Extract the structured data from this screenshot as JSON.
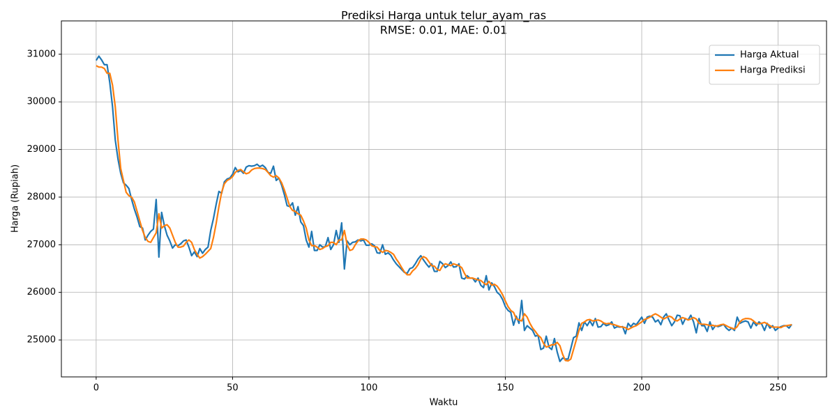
{
  "chart_data": {
    "type": "line",
    "title": "Prediksi Harga untuk telur_ayam_ras",
    "subtitle": "RMSE: 0.01, MAE: 0.01",
    "x_label": "Waktu",
    "y_label": "Harga (Rupiah)",
    "xlim": [
      -12.75,
      267.75
    ],
    "ylim": [
      24225,
      31700
    ],
    "xticks": [
      0,
      50,
      100,
      150,
      200,
      250
    ],
    "yticks": [
      25000,
      26000,
      27000,
      28000,
      29000,
      30000,
      31000
    ],
    "grid": true,
    "legend": "upper right",
    "x": [
      0,
      1,
      2,
      3,
      4,
      5,
      6,
      7,
      8,
      9,
      10,
      11,
      12,
      13,
      14,
      15,
      16,
      17,
      18,
      19,
      20,
      21,
      22,
      23,
      24,
      25,
      26,
      27,
      28,
      29,
      30,
      31,
      32,
      33,
      34,
      35,
      36,
      37,
      38,
      39,
      40,
      41,
      42,
      43,
      44,
      45,
      46,
      47,
      48,
      49,
      50,
      51,
      52,
      53,
      54,
      55,
      56,
      57,
      58,
      59,
      60,
      61,
      62,
      63,
      64,
      65,
      66,
      67,
      68,
      69,
      70,
      71,
      72,
      73,
      74,
      75,
      76,
      77,
      78,
      79,
      80,
      81,
      82,
      83,
      84,
      85,
      86,
      87,
      88,
      89,
      90,
      91,
      92,
      93,
      94,
      95,
      96,
      97,
      98,
      99,
      100,
      101,
      102,
      103,
      104,
      105,
      106,
      107,
      108,
      109,
      110,
      111,
      112,
      113,
      114,
      115,
      116,
      117,
      118,
      119,
      120,
      121,
      122,
      123,
      124,
      125,
      126,
      127,
      128,
      129,
      130,
      131,
      132,
      133,
      134,
      135,
      136,
      137,
      138,
      139,
      140,
      141,
      142,
      143,
      144,
      145,
      146,
      147,
      148,
      149,
      150,
      151,
      152,
      153,
      154,
      155,
      156,
      157,
      158,
      159,
      160,
      161,
      162,
      163,
      164,
      165,
      166,
      167,
      168,
      169,
      170,
      171,
      172,
      173,
      174,
      175,
      176,
      177,
      178,
      179,
      180,
      181,
      182,
      183,
      184,
      185,
      186,
      187,
      188,
      189,
      190,
      191,
      192,
      193,
      194,
      195,
      196,
      197,
      198,
      199,
      200,
      201,
      202,
      203,
      204,
      205,
      206,
      207,
      208,
      209,
      210,
      211,
      212,
      213,
      214,
      215,
      216,
      217,
      218,
      219,
      220,
      221,
      222,
      223,
      224,
      225,
      226,
      227,
      228,
      229,
      230,
      231,
      232,
      233,
      234,
      235,
      236,
      237,
      238,
      239,
      240,
      241,
      242,
      243,
      244,
      245,
      246,
      247,
      248,
      249,
      250,
      251,
      252,
      253,
      254,
      255
    ],
    "series": [
      {
        "name": "Harga Aktual",
        "color": "#1f77b4",
        "values": [
          30870,
          30960,
          30880,
          30780,
          30780,
          30400,
          29900,
          29200,
          28800,
          28500,
          28300,
          28250,
          28180,
          27950,
          27750,
          27580,
          27380,
          27350,
          27100,
          27200,
          27280,
          27330,
          27950,
          26740,
          27680,
          27400,
          27200,
          27080,
          26930,
          27000,
          26980,
          27020,
          27080,
          27100,
          26950,
          26770,
          26850,
          26750,
          26920,
          26820,
          26900,
          26950,
          27300,
          27550,
          27850,
          28120,
          28080,
          28320,
          28380,
          28400,
          28480,
          28620,
          28530,
          28560,
          28500,
          28630,
          28660,
          28650,
          28660,
          28690,
          28640,
          28670,
          28620,
          28520,
          28500,
          28650,
          28350,
          28400,
          28250,
          28050,
          27820,
          27800,
          27880,
          27620,
          27800,
          27480,
          27400,
          27100,
          26950,
          27280,
          26880,
          26880,
          27000,
          26950,
          26960,
          27150,
          26900,
          27000,
          27300,
          27050,
          27460,
          26490,
          27080,
          27000,
          27050,
          27060,
          27100,
          27080,
          27100,
          26990,
          26990,
          27020,
          26980,
          26830,
          26820,
          27000,
          26800,
          26830,
          26780,
          26680,
          26600,
          26540,
          26480,
          26420,
          26400,
          26500,
          26520,
          26600,
          26700,
          26770,
          26680,
          26600,
          26530,
          26600,
          26440,
          26440,
          26650,
          26600,
          26520,
          26560,
          26640,
          26530,
          26540,
          26600,
          26300,
          26280,
          26350,
          26300,
          26300,
          26220,
          26300,
          26150,
          26100,
          26350,
          26050,
          26200,
          26120,
          26000,
          25950,
          25850,
          25700,
          25620,
          25580,
          25310,
          25500,
          25350,
          25830,
          25200,
          25300,
          25250,
          25200,
          25080,
          25100,
          24800,
          24830,
          25080,
          24850,
          24800,
          25030,
          24750,
          24550,
          24620,
          24600,
          24600,
          24820,
          25050,
          25080,
          25360,
          25200,
          25380,
          25300,
          25400,
          25300,
          25450,
          25270,
          25280,
          25350,
          25300,
          25320,
          25380,
          25250,
          25280,
          25270,
          25280,
          25130,
          25350,
          25280,
          25350,
          25320,
          25400,
          25480,
          25350,
          25480,
          25500,
          25480,
          25380,
          25420,
          25320,
          25480,
          25550,
          25420,
          25300,
          25380,
          25520,
          25510,
          25330,
          25450,
          25420,
          25520,
          25380,
          25150,
          25450,
          25300,
          25300,
          25180,
          25380,
          25220,
          25300,
          25280,
          25300,
          25330,
          25250,
          25200,
          25250,
          25200,
          25480,
          25350,
          25380,
          25400,
          25380,
          25250,
          25380,
          25300,
          25380,
          25330,
          25200,
          25350,
          25250,
          25300,
          25200,
          25250,
          25280,
          25300,
          25300,
          25250,
          25330
        ]
      },
      {
        "name": "Harga Prediksi",
        "color": "#ff7f0e",
        "values": [
          30760,
          30730,
          30730,
          30700,
          30600,
          30600,
          30350,
          29900,
          29200,
          28600,
          28350,
          28100,
          28030,
          28000,
          27900,
          27700,
          27500,
          27300,
          27150,
          27070,
          27050,
          27150,
          27250,
          27650,
          27350,
          27400,
          27420,
          27350,
          27200,
          27050,
          26950,
          26950,
          26970,
          27050,
          27100,
          27050,
          26900,
          26800,
          26720,
          26750,
          26800,
          26860,
          26920,
          27150,
          27450,
          27800,
          28100,
          28280,
          28350,
          28380,
          28430,
          28520,
          28560,
          28580,
          28530,
          28490,
          28510,
          28570,
          28600,
          28610,
          28610,
          28600,
          28580,
          28520,
          28450,
          28420,
          28450,
          28400,
          28300,
          28150,
          27980,
          27800,
          27720,
          27700,
          27650,
          27620,
          27500,
          27350,
          27100,
          26980,
          26980,
          26950,
          26900,
          26920,
          26960,
          26980,
          27050,
          27050,
          27000,
          27100,
          27100,
          27300,
          27000,
          26880,
          26900,
          27000,
          27080,
          27120,
          27120,
          27100,
          27050,
          26980,
          26960,
          26950,
          26880,
          26840,
          26880,
          26870,
          26840,
          26800,
          26700,
          26620,
          26520,
          26430,
          26370,
          26370,
          26450,
          26500,
          26580,
          26700,
          26750,
          26720,
          26640,
          26560,
          26550,
          26480,
          26460,
          26560,
          26600,
          26580,
          26560,
          26600,
          26580,
          26560,
          26520,
          26400,
          26300,
          26300,
          26300,
          26280,
          26260,
          26250,
          26200,
          26160,
          26230,
          26150,
          26170,
          26130,
          26050,
          25950,
          25820,
          25700,
          25620,
          25580,
          25450,
          25420,
          25400,
          25550,
          25480,
          25350,
          25250,
          25180,
          25100,
          25050,
          24930,
          24850,
          24870,
          24900,
          24900,
          24950,
          24880,
          24700,
          24570,
          24560,
          24600,
          24800,
          25000,
          25200,
          25350,
          25380,
          25420,
          25430,
          25400,
          25410,
          25420,
          25400,
          25360,
          25340,
          25350,
          25330,
          25320,
          25300,
          25280,
          25270,
          25260,
          25220,
          25250,
          25280,
          25300,
          25340,
          25380,
          25430,
          25450,
          25480,
          25520,
          25550,
          25520,
          25480,
          25440,
          25470,
          25500,
          25480,
          25420,
          25400,
          25440,
          25470,
          25450,
          25420,
          25440,
          25470,
          25440,
          25350,
          25330,
          25330,
          25320,
          25300,
          25310,
          25290,
          25300,
          25320,
          25330,
          25300,
          25270,
          25250,
          25230,
          25280,
          25380,
          25430,
          25450,
          25450,
          25440,
          25400,
          25350,
          25340,
          25350,
          25370,
          25340,
          25300,
          25270,
          25270,
          25270,
          25260,
          25290,
          25300,
          25310,
          25320
        ]
      }
    ]
  }
}
